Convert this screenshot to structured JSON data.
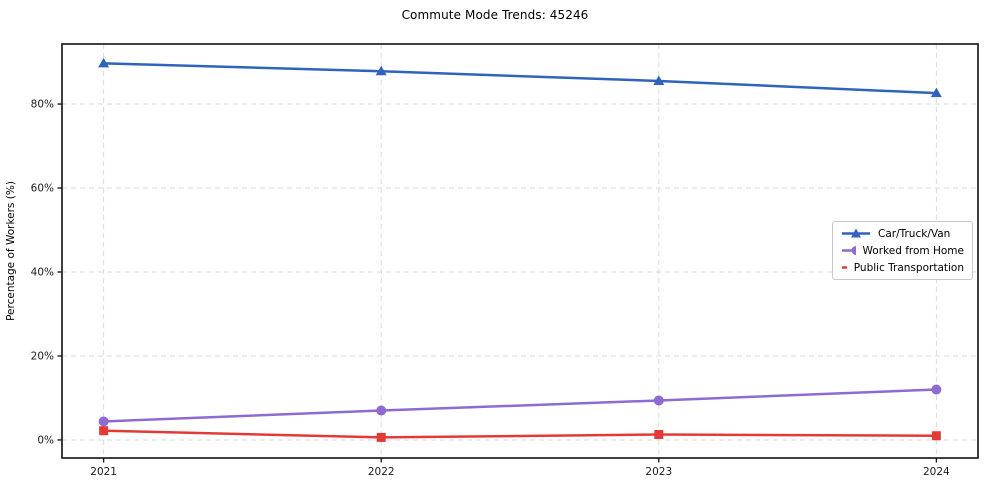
{
  "chart_data": {
    "type": "line",
    "title": "Commute Mode Trends: 45246",
    "xlabel": "",
    "ylabel": "Percentage of Workers (%)",
    "x": [
      2021,
      2022,
      2023,
      2024
    ],
    "x_tick_labels": [
      "2021",
      "2022",
      "2023",
      "2024"
    ],
    "yticks": [
      0,
      20,
      40,
      60,
      80
    ],
    "ytick_labels": [
      "0%",
      "20%",
      "40%",
      "60%",
      "80%"
    ],
    "xlim": [
      2020.85,
      2024.15
    ],
    "ylim": [
      -4.3,
      94.3
    ],
    "grid": true,
    "grid_style": "dashed",
    "legend_position": "center right",
    "series": [
      {
        "name": "Car/Truck/Van",
        "color": "#2f63bd",
        "marker": "triangle",
        "values": [
          89.7,
          87.8,
          85.5,
          82.6
        ]
      },
      {
        "name": "Worked from Home",
        "color": "#8f6ad2",
        "marker": "circle",
        "values": [
          4.4,
          7.0,
          9.4,
          12.0
        ]
      },
      {
        "name": "Public Transportation",
        "color": "#e23b37",
        "marker": "square",
        "values": [
          2.2,
          0.6,
          1.3,
          1.0
        ]
      }
    ],
    "colors": {
      "grid": "#d9d9d9",
      "frame": "#111111",
      "tick_text": "#1a1a1a",
      "background": "#ffffff"
    }
  }
}
